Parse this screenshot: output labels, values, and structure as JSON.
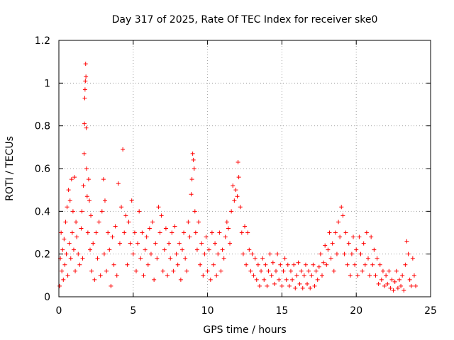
{
  "chart_data": {
    "type": "scatter",
    "title": "Day 317 of 2025, Rate Of TEC Index for receiver ske0",
    "xlabel": "GPS time / hours",
    "ylabel": "ROTI / TECUs",
    "xlim": [
      0,
      25
    ],
    "ylim": [
      0,
      1.2
    ],
    "xticks": [
      0,
      5,
      10,
      15,
      20,
      25
    ],
    "xtick_labels": [
      "0",
      "5",
      "10",
      "15",
      "20",
      "25"
    ],
    "yticks": [
      0,
      0.2,
      0.4,
      0.6,
      0.8,
      1.0,
      1.2
    ],
    "ytick_labels": [
      "0",
      "0.2",
      "0.4",
      "0.6",
      "0.8",
      "1",
      "1.2"
    ],
    "grid": true,
    "marker": "plus",
    "series": [
      {
        "name": "ROTI",
        "color": "#ff0000",
        "points": [
          [
            0.05,
            0.05
          ],
          [
            0.1,
            0.18
          ],
          [
            0.15,
            0.3
          ],
          [
            0.2,
            0.12
          ],
          [
            0.25,
            0.22
          ],
          [
            0.3,
            0.08
          ],
          [
            0.35,
            0.27
          ],
          [
            0.4,
            0.15
          ],
          [
            0.45,
            0.35
          ],
          [
            0.5,
            0.2
          ],
          [
            0.55,
            0.42
          ],
          [
            0.6,
            0.1
          ],
          [
            0.65,
            0.5
          ],
          [
            0.7,
            0.25
          ],
          [
            0.75,
            0.45
          ],
          [
            0.8,
            0.18
          ],
          [
            0.85,
            0.55
          ],
          [
            0.9,
            0.3
          ],
          [
            0.95,
            0.4
          ],
          [
            1.0,
            0.22
          ],
          [
            1.05,
            0.56
          ],
          [
            1.1,
            0.12
          ],
          [
            1.15,
            0.35
          ],
          [
            1.2,
            0.28
          ],
          [
            1.3,
            0.2
          ],
          [
            1.4,
            0.15
          ],
          [
            1.5,
            0.32
          ],
          [
            1.55,
            0.4
          ],
          [
            1.6,
            0.18
          ],
          [
            1.65,
            0.52
          ],
          [
            1.7,
            0.67
          ],
          [
            1.72,
            0.81
          ],
          [
            1.74,
            0.93
          ],
          [
            1.76,
            0.97
          ],
          [
            1.78,
            1.01
          ],
          [
            1.8,
            1.09
          ],
          [
            1.82,
            1.03
          ],
          [
            1.84,
            0.79
          ],
          [
            1.86,
            0.6
          ],
          [
            1.9,
            0.47
          ],
          [
            1.95,
            0.3
          ],
          [
            2.0,
            0.55
          ],
          [
            2.05,
            0.45
          ],
          [
            2.1,
            0.22
          ],
          [
            2.15,
            0.38
          ],
          [
            2.2,
            0.12
          ],
          [
            2.3,
            0.25
          ],
          [
            2.4,
            0.08
          ],
          [
            2.5,
            0.3
          ],
          [
            2.6,
            0.18
          ],
          [
            2.7,
            0.35
          ],
          [
            2.8,
            0.1
          ],
          [
            2.9,
            0.4
          ],
          [
            3.0,
            0.55
          ],
          [
            3.05,
            0.2
          ],
          [
            3.1,
            0.45
          ],
          [
            3.2,
            0.12
          ],
          [
            3.3,
            0.3
          ],
          [
            3.4,
            0.22
          ],
          [
            3.5,
            0.05
          ],
          [
            3.6,
            0.28
          ],
          [
            3.7,
            0.15
          ],
          [
            3.8,
            0.33
          ],
          [
            3.9,
            0.1
          ],
          [
            4.0,
            0.53
          ],
          [
            4.1,
            0.25
          ],
          [
            4.2,
            0.42
          ],
          [
            4.3,
            0.69
          ],
          [
            4.4,
            0.3
          ],
          [
            4.5,
            0.38
          ],
          [
            4.6,
            0.15
          ],
          [
            4.7,
            0.35
          ],
          [
            4.8,
            0.25
          ],
          [
            4.9,
            0.45
          ],
          [
            5.0,
            0.2
          ],
          [
            5.1,
            0.3
          ],
          [
            5.2,
            0.12
          ],
          [
            5.3,
            0.25
          ],
          [
            5.4,
            0.4
          ],
          [
            5.5,
            0.18
          ],
          [
            5.6,
            0.3
          ],
          [
            5.7,
            0.1
          ],
          [
            5.8,
            0.22
          ],
          [
            5.9,
            0.28
          ],
          [
            6.0,
            0.15
          ],
          [
            6.1,
            0.32
          ],
          [
            6.2,
            0.2
          ],
          [
            6.3,
            0.35
          ],
          [
            6.4,
            0.08
          ],
          [
            6.5,
            0.25
          ],
          [
            6.6,
            0.18
          ],
          [
            6.7,
            0.42
          ],
          [
            6.8,
            0.3
          ],
          [
            6.9,
            0.38
          ],
          [
            7.0,
            0.12
          ],
          [
            7.1,
            0.22
          ],
          [
            7.2,
            0.32
          ],
          [
            7.3,
            0.1
          ],
          [
            7.4,
            0.25
          ],
          [
            7.5,
            0.18
          ],
          [
            7.6,
            0.3
          ],
          [
            7.7,
            0.12
          ],
          [
            7.8,
            0.33
          ],
          [
            7.9,
            0.2
          ],
          [
            8.0,
            0.15
          ],
          [
            8.1,
            0.25
          ],
          [
            8.2,
            0.08
          ],
          [
            8.3,
            0.22
          ],
          [
            8.4,
            0.3
          ],
          [
            8.5,
            0.18
          ],
          [
            8.6,
            0.12
          ],
          [
            8.7,
            0.35
          ],
          [
            8.8,
            0.28
          ],
          [
            8.9,
            0.48
          ],
          [
            8.95,
            0.55
          ],
          [
            9.0,
            0.67
          ],
          [
            9.05,
            0.64
          ],
          [
            9.1,
            0.6
          ],
          [
            9.15,
            0.4
          ],
          [
            9.2,
            0.3
          ],
          [
            9.3,
            0.22
          ],
          [
            9.4,
            0.35
          ],
          [
            9.5,
            0.15
          ],
          [
            9.6,
            0.25
          ],
          [
            9.7,
            0.1
          ],
          [
            9.8,
            0.2
          ],
          [
            9.9,
            0.28
          ],
          [
            10.0,
            0.12
          ],
          [
            10.1,
            0.22
          ],
          [
            10.2,
            0.08
          ],
          [
            10.3,
            0.3
          ],
          [
            10.4,
            0.15
          ],
          [
            10.5,
            0.25
          ],
          [
            10.6,
            0.1
          ],
          [
            10.7,
            0.2
          ],
          [
            10.8,
            0.3
          ],
          [
            10.9,
            0.12
          ],
          [
            11.0,
            0.22
          ],
          [
            11.1,
            0.18
          ],
          [
            11.2,
            0.28
          ],
          [
            11.3,
            0.35
          ],
          [
            11.4,
            0.32
          ],
          [
            11.5,
            0.25
          ],
          [
            11.6,
            0.4
          ],
          [
            11.7,
            0.52
          ],
          [
            11.8,
            0.45
          ],
          [
            11.9,
            0.5
          ],
          [
            12.0,
            0.47
          ],
          [
            12.05,
            0.63
          ],
          [
            12.1,
            0.56
          ],
          [
            12.2,
            0.42
          ],
          [
            12.3,
            0.3
          ],
          [
            12.4,
            0.2
          ],
          [
            12.5,
            0.33
          ],
          [
            12.6,
            0.15
          ],
          [
            12.7,
            0.3
          ],
          [
            12.8,
            0.22
          ],
          [
            12.9,
            0.12
          ],
          [
            13.0,
            0.2
          ],
          [
            13.1,
            0.1
          ],
          [
            13.2,
            0.18
          ],
          [
            13.3,
            0.08
          ],
          [
            13.4,
            0.15
          ],
          [
            13.5,
            0.05
          ],
          [
            13.6,
            0.12
          ],
          [
            13.7,
            0.18
          ],
          [
            13.8,
            0.08
          ],
          [
            13.9,
            0.15
          ],
          [
            14.0,
            0.05
          ],
          [
            14.1,
            0.12
          ],
          [
            14.2,
            0.2
          ],
          [
            14.3,
            0.1
          ],
          [
            14.4,
            0.16
          ],
          [
            14.5,
            0.06
          ],
          [
            14.6,
            0.12
          ],
          [
            14.7,
            0.2
          ],
          [
            14.8,
            0.08
          ],
          [
            14.9,
            0.15
          ],
          [
            15.0,
            0.05
          ],
          [
            15.1,
            0.12
          ],
          [
            15.2,
            0.18
          ],
          [
            15.3,
            0.08
          ],
          [
            15.4,
            0.15
          ],
          [
            15.5,
            0.05
          ],
          [
            15.6,
            0.12
          ],
          [
            15.7,
            0.08
          ],
          [
            15.8,
            0.15
          ],
          [
            15.9,
            0.04
          ],
          [
            16.0,
            0.1
          ],
          [
            16.1,
            0.16
          ],
          [
            16.2,
            0.06
          ],
          [
            16.3,
            0.12
          ],
          [
            16.4,
            0.04
          ],
          [
            16.5,
            0.1
          ],
          [
            16.6,
            0.15
          ],
          [
            16.7,
            0.06
          ],
          [
            16.8,
            0.12
          ],
          [
            16.9,
            0.04
          ],
          [
            17.0,
            0.1
          ],
          [
            17.1,
            0.15
          ],
          [
            17.2,
            0.05
          ],
          [
            17.3,
            0.12
          ],
          [
            17.4,
            0.08
          ],
          [
            17.5,
            0.14
          ],
          [
            17.6,
            0.2
          ],
          [
            17.7,
            0.1
          ],
          [
            17.8,
            0.16
          ],
          [
            17.9,
            0.24
          ],
          [
            18.0,
            0.15
          ],
          [
            18.1,
            0.22
          ],
          [
            18.2,
            0.3
          ],
          [
            18.3,
            0.18
          ],
          [
            18.4,
            0.25
          ],
          [
            18.5,
            0.12
          ],
          [
            18.6,
            0.3
          ],
          [
            18.7,
            0.2
          ],
          [
            18.8,
            0.35
          ],
          [
            18.9,
            0.28
          ],
          [
            19.0,
            0.42
          ],
          [
            19.1,
            0.38
          ],
          [
            19.2,
            0.2
          ],
          [
            19.3,
            0.3
          ],
          [
            19.4,
            0.15
          ],
          [
            19.5,
            0.25
          ],
          [
            19.6,
            0.1
          ],
          [
            19.7,
            0.2
          ],
          [
            19.8,
            0.28
          ],
          [
            19.9,
            0.15
          ],
          [
            20.0,
            0.22
          ],
          [
            20.1,
            0.1
          ],
          [
            20.2,
            0.28
          ],
          [
            20.3,
            0.2
          ],
          [
            20.4,
            0.12
          ],
          [
            20.5,
            0.25
          ],
          [
            20.6,
            0.15
          ],
          [
            20.7,
            0.3
          ],
          [
            20.8,
            0.18
          ],
          [
            20.9,
            0.1
          ],
          [
            21.0,
            0.28
          ],
          [
            21.1,
            0.15
          ],
          [
            21.2,
            0.22
          ],
          [
            21.3,
            0.1
          ],
          [
            21.4,
            0.18
          ],
          [
            21.5,
            0.06
          ],
          [
            21.6,
            0.15
          ],
          [
            21.7,
            0.08
          ],
          [
            21.8,
            0.12
          ],
          [
            21.9,
            0.05
          ],
          [
            22.0,
            0.1
          ],
          [
            22.1,
            0.06
          ],
          [
            22.2,
            0.12
          ],
          [
            22.3,
            0.04
          ],
          [
            22.4,
            0.08
          ],
          [
            22.5,
            0.03
          ],
          [
            22.6,
            0.07
          ],
          [
            22.7,
            0.12
          ],
          [
            22.8,
            0.04
          ],
          [
            22.9,
            0.08
          ],
          [
            23.0,
            0.05
          ],
          [
            23.1,
            0.1
          ],
          [
            23.2,
            0.03
          ],
          [
            23.3,
            0.15
          ],
          [
            23.4,
            0.26
          ],
          [
            23.5,
            0.2
          ],
          [
            23.6,
            0.08
          ],
          [
            23.7,
            0.05
          ],
          [
            23.8,
            0.18
          ],
          [
            23.9,
            0.1
          ],
          [
            24.0,
            0.05
          ]
        ]
      }
    ]
  }
}
